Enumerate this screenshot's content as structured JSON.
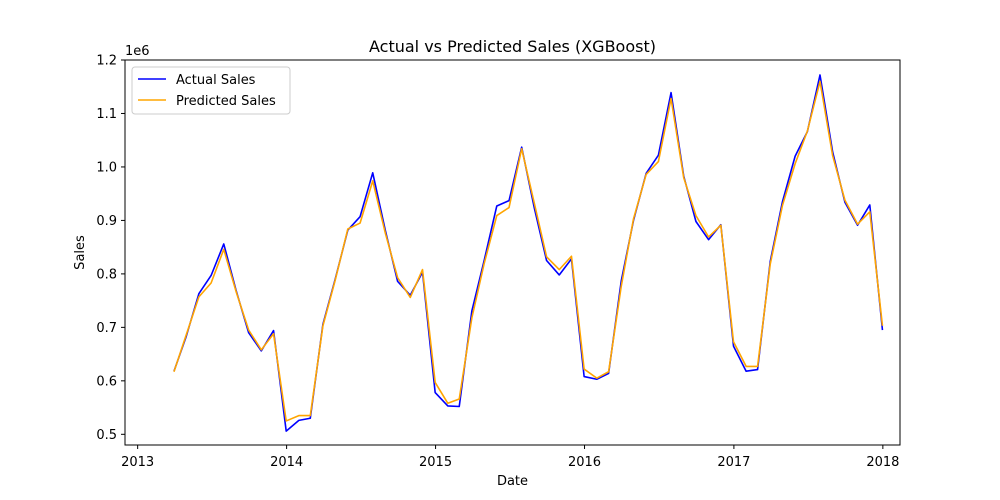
{
  "chart_data": {
    "type": "line",
    "title": "Actual vs Predicted Sales (XGBoost)",
    "xlabel": "Date",
    "ylabel": "Sales",
    "y_offset_label": "1e6",
    "x_ticks": [
      "2013",
      "2014",
      "2015",
      "2016",
      "2017",
      "2018"
    ],
    "y_ticks": [
      "0.5",
      "0.6",
      "0.7",
      "0.8",
      "0.9",
      "1.0",
      "1.1",
      "1.2"
    ],
    "xlim": [
      "2012-12-01",
      "2018-02-12"
    ],
    "ylim": [
      0.48,
      1.2
    ],
    "grid": false,
    "legend_position": "top-left",
    "dates": [
      "2013-03",
      "2013-04",
      "2013-05",
      "2013-06",
      "2013-07",
      "2013-08",
      "2013-09",
      "2013-10",
      "2013-11",
      "2013-12",
      "2014-01",
      "2014-02",
      "2014-03",
      "2014-04",
      "2014-05",
      "2014-06",
      "2014-07",
      "2014-08",
      "2014-09",
      "2014-10",
      "2014-11",
      "2014-12",
      "2015-01",
      "2015-02",
      "2015-03",
      "2015-04",
      "2015-05",
      "2015-06",
      "2015-07",
      "2015-08",
      "2015-09",
      "2015-10",
      "2015-11",
      "2015-12",
      "2016-01",
      "2016-02",
      "2016-03",
      "2016-04",
      "2016-05",
      "2016-06",
      "2016-07",
      "2016-08",
      "2016-09",
      "2016-10",
      "2016-11",
      "2016-12",
      "2017-01",
      "2017-02",
      "2017-03",
      "2017-04",
      "2017-05",
      "2017-06",
      "2017-07",
      "2017-08",
      "2017-09",
      "2017-10",
      "2017-11",
      "2017-12"
    ],
    "series": [
      {
        "name": "Actual Sales",
        "color": "#0000ff",
        "values": [
          0.618,
          0.683,
          0.763,
          0.797,
          0.856,
          0.767,
          0.69,
          0.656,
          0.694,
          0.506,
          0.526,
          0.53,
          0.706,
          0.79,
          0.882,
          0.907,
          0.989,
          0.881,
          0.786,
          0.76,
          0.803,
          0.578,
          0.553,
          0.552,
          0.731,
          0.825,
          0.927,
          0.937,
          1.037,
          0.923,
          0.825,
          0.798,
          0.828,
          0.608,
          0.603,
          0.614,
          0.787,
          0.9,
          0.988,
          1.022,
          1.139,
          0.983,
          0.898,
          0.864,
          0.892,
          0.665,
          0.618,
          0.621,
          0.823,
          0.935,
          1.02,
          1.066,
          1.172,
          1.028,
          0.934,
          0.891,
          0.929,
          0.695
        ]
      },
      {
        "name": "Predicted Sales",
        "color": "#ffa500",
        "values": [
          0.617,
          0.686,
          0.757,
          0.783,
          0.846,
          0.765,
          0.695,
          0.658,
          0.688,
          0.525,
          0.535,
          0.535,
          0.703,
          0.788,
          0.884,
          0.895,
          0.974,
          0.876,
          0.793,
          0.756,
          0.808,
          0.597,
          0.558,
          0.566,
          0.718,
          0.819,
          0.909,
          0.924,
          1.034,
          0.932,
          0.832,
          0.808,
          0.833,
          0.622,
          0.605,
          0.617,
          0.777,
          0.903,
          0.986,
          1.01,
          1.128,
          0.98,
          0.909,
          0.869,
          0.891,
          0.673,
          0.627,
          0.627,
          0.818,
          0.928,
          1.006,
          1.067,
          1.16,
          1.021,
          0.938,
          0.893,
          0.916,
          0.703
        ]
      }
    ]
  }
}
